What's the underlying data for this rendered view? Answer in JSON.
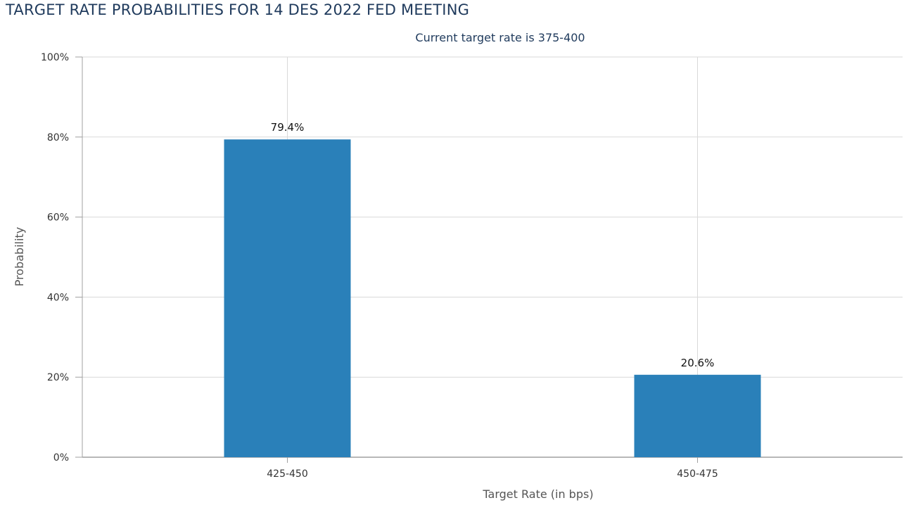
{
  "header": {
    "title": "TARGET RATE PROBABILITIES FOR 14 DES 2022 FED MEETING"
  },
  "chart_data": {
    "type": "bar",
    "subtitle": "Current target rate is 375-400",
    "categories": [
      "425-450",
      "450-475"
    ],
    "values": [
      79.4,
      20.6
    ],
    "data_labels": [
      "79.4%",
      "20.6%"
    ],
    "xlabel": "Target Rate (in bps)",
    "ylabel": "Probability",
    "ylim": [
      0,
      100
    ],
    "yticks": [
      0,
      20,
      40,
      60,
      80,
      100
    ],
    "ytick_labels": [
      "0%",
      "20%",
      "40%",
      "60%",
      "80%",
      "100%"
    ],
    "grid": true,
    "legend": "none",
    "colors": {
      "bar": "#2a80b9",
      "grid": "#d9d9d9",
      "axis": "#a0a0a0",
      "text": "#333333",
      "title": "#1f3a5c",
      "subtitle": "#1f3a5c"
    }
  }
}
